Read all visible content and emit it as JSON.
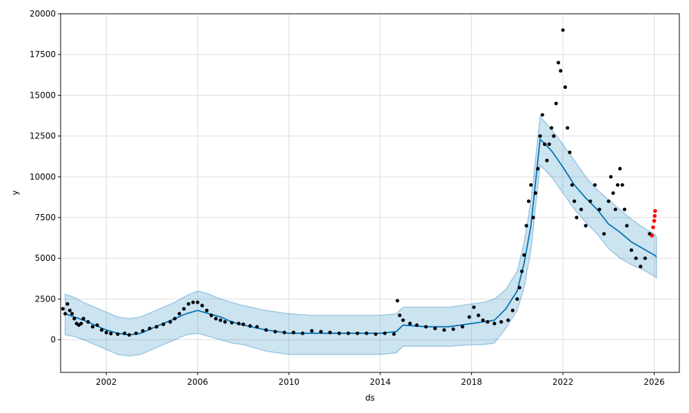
{
  "chart_data": {
    "type": "line",
    "title": "",
    "xlabel": "ds",
    "ylabel": "y",
    "xlim": [
      2000.0,
      2027.1
    ],
    "ylim": [
      -2000,
      20000
    ],
    "x_ticks": [
      2002,
      2006,
      2010,
      2014,
      2018,
      2022,
      2026
    ],
    "x_tick_labels": [
      "2002",
      "2006",
      "2010",
      "2014",
      "2018",
      "2022",
      "2026"
    ],
    "y_ticks": [
      0,
      2500,
      5000,
      7500,
      10000,
      12500,
      15000,
      17500,
      20000
    ],
    "y_tick_labels": [
      "0",
      "2500",
      "5000",
      "7500",
      "10000",
      "12500",
      "15000",
      "17500",
      "20000"
    ],
    "grid": true,
    "colors": {
      "forecast_line": "#0072B2",
      "uncertainty_band": "#0072B2",
      "observed_points": "#000000",
      "recent_points": "#ff0000"
    },
    "series": [
      {
        "kind": "uncertainty-band",
        "x": [
          2000.2,
          2000.6,
          2001.0,
          2001.5,
          2002.0,
          2002.5,
          2003.0,
          2003.5,
          2004.0,
          2004.5,
          2005.0,
          2005.5,
          2006.0,
          2006.5,
          2007.0,
          2007.5,
          2008.0,
          2009.0,
          2010.0,
          2011.0,
          2012.0,
          2013.0,
          2014.0,
          2014.7,
          2015.0,
          2016.0,
          2017.0,
          2018.0,
          2018.5,
          2019.0,
          2019.5,
          2020.0,
          2020.3,
          2020.6,
          2021.0,
          2021.5,
          2022.0,
          2022.5,
          2023.0,
          2023.5,
          2024.0,
          2024.5,
          2025.0,
          2025.5,
          2026.0,
          2026.1
        ],
        "lower": [
          300,
          200,
          0,
          -300,
          -600,
          -900,
          -1000,
          -900,
          -600,
          -300,
          0,
          300,
          400,
          200,
          0,
          -200,
          -300,
          -700,
          -900,
          -900,
          -900,
          -900,
          -900,
          -800,
          -400,
          -400,
          -400,
          -300,
          -300,
          -200,
          700,
          1800,
          3200,
          5500,
          10700,
          10000,
          9000,
          8000,
          7200,
          6500,
          5600,
          5000,
          4600,
          4300,
          3900,
          3800
        ],
        "upper": [
          2800,
          2600,
          2300,
          2000,
          1700,
          1400,
          1300,
          1400,
          1700,
          2000,
          2300,
          2700,
          3000,
          2800,
          2500,
          2300,
          2100,
          1800,
          1600,
          1500,
          1500,
          1500,
          1500,
          1600,
          2000,
          2000,
          2000,
          2200,
          2300,
          2500,
          3100,
          4200,
          6000,
          8500,
          13700,
          12900,
          12000,
          11000,
          10000,
          9200,
          8600,
          8000,
          7400,
          6900,
          6500,
          6300
        ]
      },
      {
        "kind": "forecast-line",
        "x": [
          2000.2,
          2000.6,
          2001.0,
          2001.5,
          2002.0,
          2002.5,
          2003.0,
          2003.5,
          2004.0,
          2004.5,
          2005.0,
          2005.5,
          2006.0,
          2006.5,
          2007.0,
          2007.5,
          2008.0,
          2009.0,
          2010.0,
          2011.0,
          2012.0,
          2013.0,
          2014.0,
          2014.7,
          2015.0,
          2016.0,
          2017.0,
          2018.0,
          2018.5,
          2019.0,
          2019.5,
          2020.0,
          2020.3,
          2020.6,
          2021.0,
          2021.5,
          2022.0,
          2022.5,
          2023.0,
          2023.5,
          2024.0,
          2024.5,
          2025.0,
          2025.5,
          2026.0,
          2026.1
        ],
        "y": [
          1600,
          1400,
          1200,
          900,
          600,
          400,
          300,
          400,
          700,
          1000,
          1300,
          1600,
          1800,
          1600,
          1400,
          1100,
          900,
          600,
          400,
          400,
          400,
          400,
          400,
          500,
          900,
          800,
          800,
          1000,
          1100,
          1200,
          1900,
          3000,
          4700,
          7000,
          12300,
          11600,
          10600,
          9500,
          8700,
          8000,
          7100,
          6600,
          6000,
          5600,
          5200,
          5100
        ]
      },
      {
        "kind": "observed-points",
        "x": [
          2000.1,
          2000.2,
          2000.3,
          2000.4,
          2000.5,
          2000.6,
          2000.7,
          2000.8,
          2000.9,
          2001.0,
          2001.2,
          2001.4,
          2001.6,
          2001.8,
          2002.0,
          2002.2,
          2002.5,
          2002.8,
          2003.0,
          2003.3,
          2003.6,
          2003.9,
          2004.2,
          2004.5,
          2004.8,
          2005.0,
          2005.2,
          2005.4,
          2005.6,
          2005.8,
          2006.0,
          2006.2,
          2006.4,
          2006.6,
          2006.8,
          2007.0,
          2007.2,
          2007.5,
          2007.8,
          2008.0,
          2008.3,
          2008.6,
          2009.0,
          2009.4,
          2009.8,
          2010.2,
          2010.6,
          2011.0,
          2011.4,
          2011.8,
          2012.2,
          2012.6,
          2013.0,
          2013.4,
          2013.8,
          2014.2,
          2014.6,
          2014.75,
          2014.85,
          2015.0,
          2015.3,
          2015.6,
          2016.0,
          2016.4,
          2016.8,
          2017.2,
          2017.6,
          2017.9,
          2018.1,
          2018.3,
          2018.5,
          2018.7,
          2019.0,
          2019.3,
          2019.6,
          2019.8,
          2020.0,
          2020.1,
          2020.2,
          2020.3,
          2020.4,
          2020.5,
          2020.6,
          2020.7,
          2020.8,
          2020.9,
          2021.0,
          2021.1,
          2021.2,
          2021.3,
          2021.4,
          2021.5,
          2021.6,
          2021.7,
          2021.8,
          2021.9,
          2022.0,
          2022.1,
          2022.2,
          2022.3,
          2022.4,
          2022.5,
          2022.6,
          2022.8,
          2023.0,
          2023.2,
          2023.4,
          2023.6,
          2023.8,
          2024.0,
          2024.1,
          2024.2,
          2024.3,
          2024.4,
          2024.5,
          2024.6,
          2024.7,
          2024.8,
          2025.0,
          2025.2,
          2025.4,
          2025.6,
          2025.8
        ],
        "y": [
          1900,
          1600,
          2200,
          1800,
          1600,
          1300,
          1000,
          900,
          1000,
          1300,
          1100,
          800,
          900,
          600,
          450,
          380,
          350,
          400,
          300,
          400,
          550,
          700,
          800,
          950,
          1100,
          1300,
          1600,
          1900,
          2200,
          2300,
          2300,
          2100,
          1800,
          1500,
          1300,
          1200,
          1100,
          1050,
          1000,
          950,
          850,
          800,
          600,
          500,
          450,
          450,
          400,
          550,
          500,
          450,
          400,
          400,
          400,
          400,
          350,
          400,
          350,
          2400,
          1500,
          1200,
          1000,
          900,
          800,
          700,
          600,
          650,
          800,
          1400,
          2000,
          1500,
          1200,
          1100,
          1000,
          1100,
          1200,
          1800,
          2500,
          3200,
          4200,
          5200,
          7000,
          8500,
          9500,
          7500,
          9000,
          10500,
          12500,
          13800,
          12000,
          11000,
          12000,
          13000,
          12500,
          14500,
          17000,
          16500,
          19000,
          15500,
          13000,
          11500,
          9500,
          8500,
          7500,
          8000,
          7000,
          8500,
          9500,
          8000,
          6500,
          8500,
          10000,
          9000,
          8000,
          9500,
          10500,
          9500,
          8000,
          7000,
          5500,
          5000,
          4500,
          5000,
          6500
        ]
      },
      {
        "kind": "recent-points",
        "x": [
          2025.9,
          2025.95,
          2026.0,
          2026.02,
          2026.04
        ],
        "y": [
          6400,
          6900,
          7300,
          7600,
          7900
        ]
      }
    ]
  }
}
